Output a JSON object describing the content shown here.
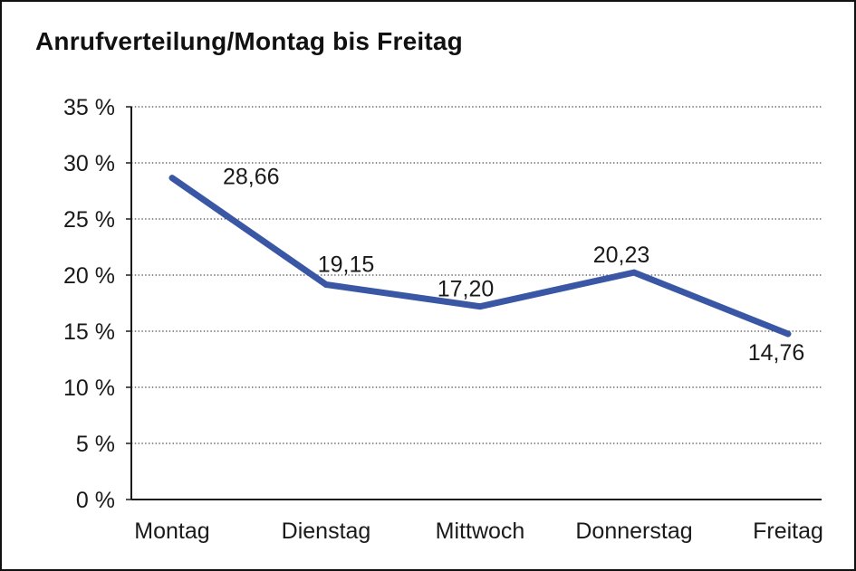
{
  "title": "Anrufverteilung/Montag bis Freitag",
  "chart_data": {
    "type": "line",
    "title": "Anrufverteilung/Montag bis Freitag",
    "categories": [
      "Montag",
      "Dienstag",
      "Mittwoch",
      "Donnerstag",
      "Freitag"
    ],
    "values": [
      28.66,
      19.15,
      17.2,
      20.23,
      14.76
    ],
    "data_labels": [
      "28,66",
      "19,15",
      "17,20",
      "20,23",
      "14,76"
    ],
    "xlabel": "",
    "ylabel": "",
    "ylim": [
      0,
      35
    ],
    "ytick_step": 5,
    "ytick_labels": [
      "0 %",
      "5 %",
      "10 %",
      "15 %",
      "20 %",
      "25 %",
      "30 %",
      "35 %"
    ],
    "grid": "horizontal-dotted",
    "legend_position": "none",
    "line_color": "#3A57A5",
    "axis_color": "#1a1a1a",
    "gridline_color": "#4a4a4a",
    "text_color": "#1a1a1a"
  }
}
